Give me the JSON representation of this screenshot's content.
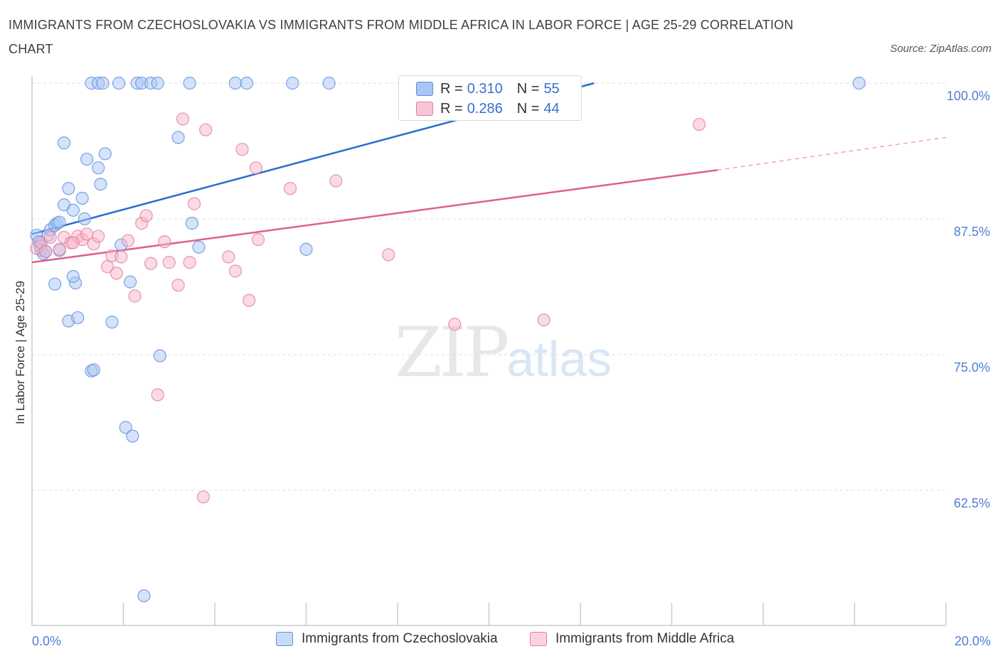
{
  "title": "IMMIGRANTS FROM CZECHOSLOVAKIA VS IMMIGRANTS FROM MIDDLE AFRICA IN LABOR FORCE | AGE 25-29 CORRELATION CHART",
  "source": "Source: ZipAtlas.com",
  "watermark": {
    "zip": "ZIP",
    "atlas": "atlas"
  },
  "legend": {
    "rows": [
      {
        "r_label": "R = ",
        "r_value": "0.310",
        "n_label": "N = ",
        "n_value": "55",
        "color": "#a9c6f5"
      },
      {
        "r_label": "R = ",
        "r_value": "0.286",
        "n_label": "N = ",
        "n_value": "44",
        "color": "#f7b6c9"
      }
    ]
  },
  "bottom_legend": {
    "items": [
      {
        "label": "Immigrants from Czechoslovakia",
        "color": "#a9c6f5"
      },
      {
        "label": "Immigrants from Middle Africa",
        "color": "#f7b6c9"
      }
    ]
  },
  "chart_data": {
    "type": "scatter",
    "title": "IMMIGRANTS FROM CZECHOSLOVAKIA VS IMMIGRANTS FROM MIDDLE AFRICA IN LABOR FORCE | AGE 25-29 CORRELATION CHART",
    "xlabel": "",
    "ylabel": "In Labor Force | Age 25-29",
    "xlim": [
      0,
      20
    ],
    "ylim": [
      49.5,
      101
    ],
    "x_tick_labels": [
      {
        "value": 0,
        "label": "0.0%"
      },
      {
        "value": 20,
        "label": "20.0%"
      }
    ],
    "y_ticks": [
      {
        "value": 100,
        "label": "100.0%"
      },
      {
        "value": 87.5,
        "label": "87.5%"
      },
      {
        "value": 75,
        "label": "75.0%"
      },
      {
        "value": 62.5,
        "label": "62.5%"
      }
    ],
    "grid": true,
    "series": [
      {
        "name": "Immigrants from Czechoslovakia",
        "color": "#5b8fe0",
        "fill": "#a9c6f5",
        "trend": {
          "x": [
            0,
            12.3
          ],
          "y": [
            86.1,
            100
          ],
          "color": "#2a6fd0"
        },
        "points": [
          [
            0.1,
            86.0
          ],
          [
            0.15,
            85.4
          ],
          [
            0.18,
            85.0
          ],
          [
            0.2,
            84.6
          ],
          [
            0.25,
            84.3
          ],
          [
            0.3,
            84.5
          ],
          [
            0.35,
            86.0
          ],
          [
            0.4,
            86.5
          ],
          [
            0.5,
            86.9
          ],
          [
            0.55,
            87.1
          ],
          [
            0.6,
            87.2
          ],
          [
            0.7,
            88.8
          ],
          [
            0.7,
            94.5
          ],
          [
            0.8,
            90.3
          ],
          [
            0.9,
            88.3
          ],
          [
            1.1,
            89.4
          ],
          [
            1.15,
            87.5
          ],
          [
            1.2,
            93.0
          ],
          [
            1.3,
            73.5
          ],
          [
            1.35,
            73.6
          ],
          [
            1.45,
            92.2
          ],
          [
            1.5,
            90.7
          ],
          [
            1.6,
            93.5
          ],
          [
            1.75,
            78.0
          ],
          [
            1.95,
            85.1
          ],
          [
            2.05,
            68.3
          ],
          [
            2.15,
            81.7
          ],
          [
            2.2,
            67.5
          ],
          [
            2.45,
            52.8
          ],
          [
            2.8,
            74.9
          ],
          [
            3.2,
            95.0
          ],
          [
            3.5,
            87.1
          ],
          [
            3.65,
            84.9
          ],
          [
            0.8,
            78.1
          ],
          [
            0.95,
            81.6
          ],
          [
            0.5,
            81.5
          ],
          [
            0.9,
            82.2
          ],
          [
            1.0,
            78.4
          ],
          [
            6.0,
            84.7
          ],
          [
            1.3,
            100
          ],
          [
            1.45,
            100
          ],
          [
            1.55,
            100
          ],
          [
            1.9,
            100
          ],
          [
            2.3,
            100
          ],
          [
            2.4,
            100
          ],
          [
            2.6,
            100
          ],
          [
            2.75,
            100
          ],
          [
            3.45,
            100
          ],
          [
            4.45,
            100
          ],
          [
            4.7,
            100
          ],
          [
            5.7,
            100
          ],
          [
            6.5,
            100
          ],
          [
            9.5,
            100
          ],
          [
            18.1,
            100
          ],
          [
            0.6,
            84.6
          ]
        ]
      },
      {
        "name": "Immigrants from Middle Africa",
        "color": "#e57a9c",
        "fill": "#f7b6c9",
        "trend": {
          "x": [
            0,
            15.0
          ],
          "y": [
            83.5,
            92.0
          ],
          "dash_to_x": 20,
          "dash_to_y": 95.0,
          "color": "#e05f8d"
        },
        "points": [
          [
            0.1,
            84.8
          ],
          [
            0.2,
            85.3
          ],
          [
            0.3,
            84.5
          ],
          [
            0.4,
            85.8
          ],
          [
            0.6,
            84.7
          ],
          [
            0.7,
            85.8
          ],
          [
            0.85,
            85.3
          ],
          [
            1.0,
            85.9
          ],
          [
            1.1,
            85.6
          ],
          [
            1.2,
            86.1
          ],
          [
            1.35,
            85.2
          ],
          [
            1.45,
            85.9
          ],
          [
            1.65,
            83.1
          ],
          [
            1.75,
            84.1
          ],
          [
            1.85,
            82.5
          ],
          [
            1.95,
            84.0
          ],
          [
            2.1,
            85.5
          ],
          [
            2.25,
            80.4
          ],
          [
            2.4,
            87.1
          ],
          [
            2.5,
            87.8
          ],
          [
            2.6,
            83.4
          ],
          [
            2.75,
            71.3
          ],
          [
            2.9,
            85.4
          ],
          [
            3.0,
            83.5
          ],
          [
            3.2,
            81.4
          ],
          [
            3.3,
            96.7
          ],
          [
            3.45,
            83.5
          ],
          [
            3.55,
            88.9
          ],
          [
            3.8,
            95.7
          ],
          [
            4.3,
            84.0
          ],
          [
            4.45,
            82.7
          ],
          [
            4.6,
            93.9
          ],
          [
            4.75,
            80.0
          ],
          [
            4.9,
            92.2
          ],
          [
            4.95,
            85.6
          ],
          [
            5.65,
            90.3
          ],
          [
            6.65,
            91.0
          ],
          [
            7.8,
            84.2
          ],
          [
            9.25,
            77.8
          ],
          [
            9.2,
            100
          ],
          [
            11.2,
            78.2
          ],
          [
            14.6,
            96.2
          ],
          [
            3.75,
            61.9
          ],
          [
            0.9,
            85.3
          ]
        ]
      }
    ]
  }
}
